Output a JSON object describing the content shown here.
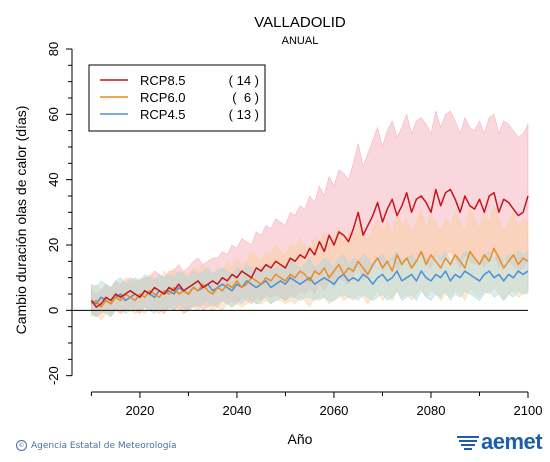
{
  "chart_data": {
    "type": "line",
    "title": "VALLADOLID",
    "subtitle": "ANUAL",
    "xlabel": "Año",
    "ylabel": "Cambio duración olas de calor (días)",
    "xlim": [
      2006,
      2100
    ],
    "ylim": [
      -25,
      80
    ],
    "xticks": [
      2020,
      2040,
      2060,
      2080,
      2100
    ],
    "yticks": [
      -20,
      0,
      20,
      40,
      60,
      80
    ],
    "zero_line": 0,
    "legend_position": "top-left",
    "legend_labels": [
      "RCP8.5",
      "RCP6.0",
      "RCP4.5"
    ],
    "legend_counts": [
      "( 14 )",
      "(  6 )",
      "( 13 )"
    ],
    "series": [
      {
        "name": "RCP8.5",
        "color": "#c8141c",
        "band_color": "#f4a6b4",
        "x_start": 2010,
        "values": [
          3,
          1,
          2,
          4,
          3,
          5,
          4,
          5,
          6,
          5,
          4,
          6,
          5,
          7,
          6,
          5,
          7,
          6,
          8,
          6,
          7,
          8,
          9,
          7,
          8,
          9,
          8,
          10,
          9,
          11,
          10,
          12,
          11,
          10,
          13,
          12,
          14,
          13,
          15,
          14,
          13,
          16,
          15,
          17,
          16,
          19,
          17,
          21,
          18,
          23,
          20,
          24,
          23,
          21,
          25,
          30,
          23,
          26,
          29,
          33,
          27,
          31,
          34,
          29,
          32,
          36,
          30,
          34,
          35,
          33,
          30,
          37,
          32,
          36,
          37,
          34,
          30,
          35,
          32,
          31,
          34,
          30,
          35,
          36,
          30,
          34,
          33,
          31,
          29,
          30,
          35
        ],
        "upper": [
          6,
          5,
          6,
          8,
          7,
          9,
          8,
          9,
          10,
          9,
          9,
          10,
          10,
          12,
          11,
          10,
          12,
          12,
          14,
          12,
          13,
          15,
          16,
          14,
          15,
          16,
          16,
          18,
          17,
          20,
          19,
          22,
          21,
          20,
          24,
          23,
          26,
          25,
          28,
          27,
          26,
          30,
          29,
          32,
          31,
          35,
          33,
          38,
          35,
          41,
          38,
          43,
          42,
          40,
          45,
          51,
          44,
          48,
          52,
          56,
          50,
          55,
          58,
          53,
          56,
          60,
          54,
          58,
          59,
          57,
          54,
          61,
          56,
          60,
          61,
          58,
          54,
          59,
          56,
          55,
          58,
          54,
          59,
          60,
          54,
          58,
          57,
          55,
          53,
          54,
          57
        ],
        "lower": [
          0,
          -2,
          -1,
          0,
          -1,
          0,
          -1,
          0,
          1,
          0,
          -1,
          1,
          0,
          1,
          0,
          -1,
          1,
          0,
          1,
          -1,
          0,
          1,
          2,
          0,
          1,
          2,
          1,
          3,
          2,
          3,
          2,
          4,
          3,
          2,
          4,
          3,
          5,
          4,
          5,
          4,
          3,
          5,
          4,
          6,
          5,
          7,
          5,
          8,
          6,
          9,
          7,
          10,
          9,
          8,
          11,
          14,
          9,
          11,
          13,
          16,
          12,
          14,
          16,
          12,
          14,
          17,
          13,
          16,
          17,
          15,
          13,
          18,
          15,
          17,
          18,
          16,
          13,
          17,
          15,
          14,
          16,
          13,
          17,
          18,
          13,
          16,
          15,
          14,
          12,
          13,
          16
        ]
      },
      {
        "name": "RCP6.0",
        "color": "#ee8a22",
        "band_color": "#f9cf9a",
        "x_start": 2010,
        "values": [
          2,
          3,
          1,
          3,
          2,
          4,
          3,
          5,
          4,
          3,
          5,
          4,
          6,
          5,
          4,
          6,
          5,
          7,
          5,
          6,
          5,
          7,
          6,
          8,
          6,
          5,
          7,
          6,
          8,
          7,
          9,
          7,
          8,
          10,
          9,
          8,
          10,
          9,
          11,
          10,
          9,
          11,
          10,
          12,
          11,
          9,
          12,
          11,
          13,
          10,
          12,
          14,
          11,
          13,
          12,
          15,
          13,
          11,
          14,
          16,
          13,
          15,
          12,
          17,
          14,
          16,
          13,
          15,
          18,
          14,
          17,
          15,
          13,
          16,
          14,
          17,
          15,
          13,
          18,
          16,
          14,
          17,
          15,
          19,
          16,
          13,
          15,
          17,
          14,
          16,
          15
        ],
        "upper": [
          7,
          8,
          6,
          8,
          7,
          9,
          8,
          10,
          9,
          8,
          10,
          9,
          11,
          10,
          9,
          12,
          10,
          13,
          11,
          12,
          11,
          13,
          12,
          14,
          12,
          11,
          13,
          12,
          15,
          13,
          16,
          14,
          15,
          18,
          17,
          15,
          18,
          17,
          20,
          18,
          17,
          20,
          19,
          22,
          20,
          18,
          22,
          21,
          24,
          20,
          22,
          25,
          21,
          24,
          23,
          27,
          24,
          21,
          25,
          28,
          24,
          27,
          23,
          30,
          26,
          28,
          24,
          27,
          31,
          25,
          29,
          27,
          24,
          28,
          26,
          30,
          27,
          24,
          31,
          28,
          25,
          30,
          27,
          32,
          28,
          24,
          27,
          30,
          25,
          28,
          27
        ],
        "lower": [
          -2,
          -1,
          -3,
          -1,
          -2,
          0,
          -1,
          1,
          0,
          -1,
          0,
          -1,
          1,
          0,
          -1,
          1,
          0,
          2,
          0,
          1,
          0,
          1,
          0,
          2,
          1,
          0,
          1,
          0,
          2,
          1,
          2,
          1,
          2,
          3,
          2,
          2,
          3,
          2,
          3,
          3,
          2,
          3,
          2,
          4,
          3,
          1,
          4,
          3,
          4,
          2,
          3,
          5,
          3,
          4,
          3,
          5,
          4,
          2,
          4,
          6,
          3,
          5,
          3,
          6,
          4,
          5,
          3,
          5,
          7,
          4,
          6,
          5,
          3,
          5,
          4,
          6,
          5,
          3,
          7,
          5,
          4,
          6,
          5,
          7,
          5,
          3,
          5,
          6,
          4,
          5,
          5
        ]
      },
      {
        "name": "RCP4.5",
        "color": "#4a90d6",
        "band_color": "#a8d6e0",
        "x_start": 2010,
        "values": [
          3,
          2,
          4,
          3,
          2,
          4,
          5,
          3,
          4,
          5,
          4,
          6,
          5,
          4,
          6,
          5,
          6,
          5,
          7,
          6,
          5,
          7,
          6,
          7,
          8,
          6,
          7,
          8,
          7,
          6,
          8,
          7,
          9,
          8,
          7,
          8,
          9,
          7,
          8,
          9,
          8,
          10,
          9,
          8,
          9,
          10,
          8,
          9,
          10,
          9,
          8,
          10,
          11,
          9,
          10,
          9,
          11,
          10,
          8,
          10,
          11,
          9,
          10,
          12,
          9,
          10,
          11,
          9,
          12,
          10,
          9,
          11,
          10,
          12,
          9,
          11,
          10,
          12,
          11,
          10,
          9,
          11,
          12,
          10,
          11,
          9,
          11,
          10,
          12,
          11,
          12
        ],
        "upper": [
          8,
          7,
          9,
          8,
          7,
          9,
          10,
          8,
          9,
          10,
          9,
          11,
          10,
          9,
          11,
          10,
          11,
          10,
          12,
          11,
          10,
          12,
          11,
          12,
          13,
          11,
          12,
          13,
          12,
          11,
          13,
          12,
          14,
          13,
          12,
          13,
          14,
          12,
          13,
          14,
          13,
          16,
          14,
          13,
          14,
          16,
          13,
          14,
          16,
          15,
          13,
          16,
          17,
          14,
          16,
          15,
          17,
          16,
          13,
          16,
          17,
          15,
          16,
          18,
          15,
          16,
          17,
          15,
          18,
          16,
          15,
          17,
          16,
          18,
          15,
          17,
          16,
          18,
          17,
          16,
          15,
          17,
          18,
          16,
          17,
          15,
          17,
          16,
          18,
          17,
          18
        ],
        "lower": [
          -1,
          -2,
          0,
          -1,
          -2,
          0,
          1,
          -1,
          0,
          1,
          0,
          1,
          0,
          -1,
          1,
          0,
          1,
          0,
          2,
          1,
          0,
          2,
          1,
          2,
          3,
          1,
          2,
          3,
          2,
          1,
          3,
          2,
          4,
          3,
          2,
          3,
          4,
          2,
          3,
          4,
          3,
          4,
          4,
          3,
          4,
          4,
          3,
          4,
          4,
          3,
          3,
          4,
          5,
          4,
          4,
          3,
          5,
          4,
          3,
          4,
          5,
          3,
          4,
          6,
          3,
          4,
          5,
          3,
          6,
          4,
          3,
          5,
          4,
          6,
          3,
          5,
          4,
          6,
          5,
          4,
          3,
          5,
          6,
          4,
          5,
          3,
          5,
          4,
          6,
          5,
          6
        ]
      }
    ]
  },
  "footer": {
    "credit_symbol": "©",
    "credit_text": "Agencia Estatal de Meteorología",
    "logo_text": "aemet",
    "logo_color": "#1d5ea8"
  }
}
